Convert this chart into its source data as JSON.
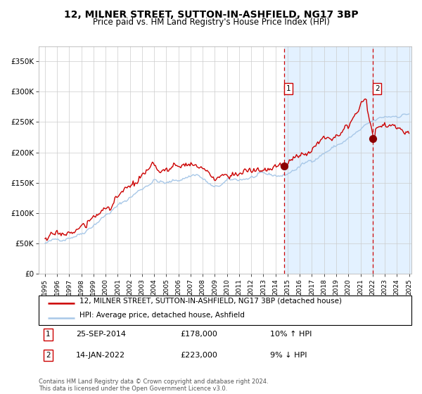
{
  "title": "12, MILNER STREET, SUTTON-IN-ASHFIELD, NG17 3BP",
  "subtitle": "Price paid vs. HM Land Registry's House Price Index (HPI)",
  "title_fontsize": 10,
  "subtitle_fontsize": 8.5,
  "ylim": [
    0,
    375000
  ],
  "yticks": [
    0,
    50000,
    100000,
    150000,
    200000,
    250000,
    300000,
    350000
  ],
  "ytick_labels": [
    "£0",
    "£50K",
    "£100K",
    "£150K",
    "£200K",
    "£250K",
    "£300K",
    "£350K"
  ],
  "year_start": 1995,
  "year_end": 2025,
  "hpi_color": "#a8c8e8",
  "price_color": "#cc0000",
  "bg_color": "#ffffff",
  "plot_bg_color": "#ffffff",
  "grid_color": "#cccccc",
  "shade_color": "#ddeeff",
  "vline_color": "#cc0000",
  "legend_label_price": "12, MILNER STREET, SUTTON-IN-ASHFIELD, NG17 3BP (detached house)",
  "legend_label_hpi": "HPI: Average price, detached house, Ashfield",
  "transaction1_date": "25-SEP-2014",
  "transaction1_price": 178000,
  "transaction1_pct": "10% ↑ HPI",
  "transaction2_date": "14-JAN-2022",
  "transaction2_price": 223000,
  "transaction2_pct": "9% ↓ HPI",
  "footnote": "Contains HM Land Registry data © Crown copyright and database right 2024.\nThis data is licensed under the Open Government Licence v3.0.",
  "t1_year": 2014.73,
  "t2_year": 2022.04
}
